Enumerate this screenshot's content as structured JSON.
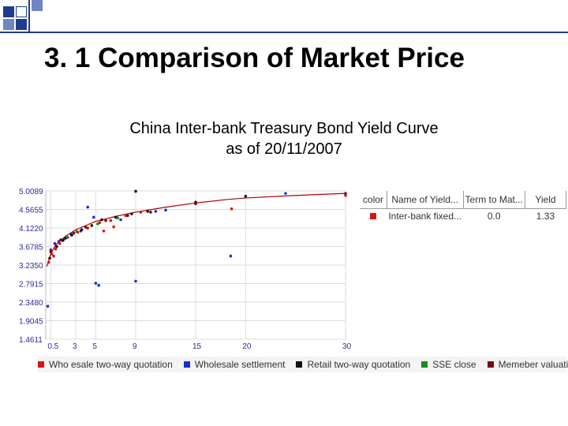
{
  "slide": {
    "title": "3. 1 Comparison of Market Price"
  },
  "theme": {
    "accent_blue": "#1f3b8c",
    "light_blue": "#6f86c4",
    "curve_red": "#b00000"
  },
  "chart_data": {
    "type": "scatter",
    "title_line1": "China Inter-bank Treasury Bond Yield Curve",
    "title_line2": "as of 20/11/2007",
    "x_ticks": [
      "0.5",
      "3",
      "5",
      "9",
      "15",
      "20",
      "30"
    ],
    "y_ticks": [
      "5.0089",
      "4.5655",
      "4.1220",
      "3.6785",
      "3.2350",
      "2.7915",
      "2.3480",
      "1.9045",
      "1.4611"
    ],
    "xlim": [
      0,
      30
    ],
    "ylim": [
      1.4611,
      5.0089
    ],
    "grid": true,
    "curve": {
      "color": "#b00000",
      "points": [
        [
          0.1,
          3.2
        ],
        [
          0.5,
          3.5
        ],
        [
          1,
          3.72
        ],
        [
          2,
          3.93
        ],
        [
          3,
          4.08
        ],
        [
          5,
          4.28
        ],
        [
          7,
          4.4
        ],
        [
          9,
          4.5
        ],
        [
          12,
          4.62
        ],
        [
          15,
          4.72
        ],
        [
          18,
          4.8
        ],
        [
          20,
          4.84
        ],
        [
          25,
          4.9
        ],
        [
          30,
          4.95
        ]
      ]
    },
    "series": [
      {
        "name": "Who esale two-way quotation",
        "color": "#e01010",
        "points": [
          [
            0.3,
            3.3
          ],
          [
            0.6,
            3.5
          ],
          [
            1.0,
            3.62
          ],
          [
            1.4,
            3.75
          ],
          [
            2.2,
            3.9
          ],
          [
            3.2,
            4.02
          ],
          [
            4.2,
            4.12
          ],
          [
            5.4,
            4.25
          ],
          [
            6.5,
            4.3
          ],
          [
            8.0,
            4.42
          ],
          [
            9.5,
            4.5
          ],
          [
            18.6,
            4.58
          ],
          [
            30.0,
            4.9
          ],
          [
            5.8,
            4.05
          ],
          [
            6.8,
            4.15
          ],
          [
            0.8,
            3.45
          ]
        ]
      },
      {
        "name": "Wholesale settlement",
        "color": "#1a2fd0",
        "points": [
          [
            0.2,
            2.25
          ],
          [
            0.5,
            3.6
          ],
          [
            0.9,
            3.75
          ],
          [
            1.3,
            3.8
          ],
          [
            2.5,
            3.98
          ],
          [
            3.5,
            4.05
          ],
          [
            4.2,
            4.62
          ],
          [
            4.8,
            4.38
          ],
          [
            5.0,
            2.8
          ],
          [
            5.3,
            2.75
          ],
          [
            9.0,
            2.85
          ],
          [
            11.0,
            4.52
          ],
          [
            12.0,
            4.55
          ],
          [
            24.0,
            4.95
          ],
          [
            18.5,
            3.45
          ],
          [
            1.8,
            3.85
          ],
          [
            7.5,
            4.32
          ]
        ]
      },
      {
        "name": "Retail two-way quotation",
        "color": "#111111",
        "points": [
          [
            0.4,
            3.4
          ],
          [
            1.1,
            3.68
          ],
          [
            1.7,
            3.82
          ],
          [
            2.6,
            3.95
          ],
          [
            3.6,
            4.08
          ],
          [
            4.6,
            4.18
          ],
          [
            5.6,
            4.32
          ],
          [
            7.0,
            4.38
          ],
          [
            8.6,
            4.46
          ],
          [
            10.2,
            4.52
          ],
          [
            15.0,
            4.74
          ],
          [
            9.0,
            5.0
          ],
          [
            20.0,
            4.88
          ],
          [
            2.0,
            3.88
          ]
        ]
      },
      {
        "name": "SSE close",
        "color": "#1a8a1a",
        "points": [
          [
            2.1,
            3.92
          ],
          [
            3.1,
            4.04
          ],
          [
            5.2,
            4.22
          ],
          [
            7.2,
            4.36
          ]
        ]
      },
      {
        "name": "Memeber valuations",
        "color": "#7a0a0a",
        "points": [
          [
            0.5,
            3.55
          ],
          [
            1.5,
            3.84
          ],
          [
            2.8,
            4.0
          ],
          [
            4.0,
            4.14
          ],
          [
            6.0,
            4.3
          ],
          [
            8.2,
            4.42
          ],
          [
            10.5,
            4.5
          ],
          [
            15.0,
            4.7
          ],
          [
            30.0,
            4.95
          ]
        ]
      }
    ]
  },
  "table": {
    "headers": [
      "color",
      "Name of Yield...",
      "Term to Mat...",
      "Yield"
    ],
    "rows": [
      {
        "color": "#e01010",
        "name": "Inter-bank fixed...",
        "term": "0.0",
        "yield": "1.33"
      }
    ]
  }
}
